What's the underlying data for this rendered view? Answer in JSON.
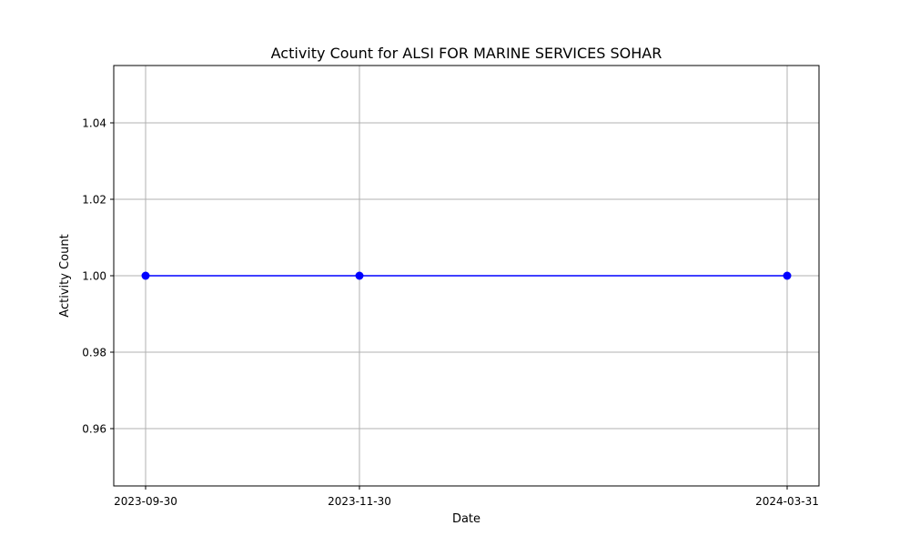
{
  "chart_data": {
    "type": "line",
    "title": "Activity Count for ALSI FOR MARINE SERVICES SOHAR",
    "xlabel": "Date",
    "ylabel": "Activity Count",
    "x_tick_labels": [
      "2023-09-30",
      "2023-11-30",
      "2024-03-31"
    ],
    "y_tick_labels": [
      "0.96",
      "0.98",
      "1.00",
      "1.02",
      "1.04"
    ],
    "y_ticks": [
      0.96,
      0.98,
      1.0,
      1.02,
      1.04
    ],
    "ylim": [
      0.945,
      1.055
    ],
    "grid": true,
    "series": [
      {
        "x": [
          "2023-09-30",
          "2023-11-30",
          "2024-03-31"
        ],
        "values": [
          1,
          1,
          1
        ],
        "color": "#0000ff",
        "marker": "circle"
      }
    ]
  }
}
